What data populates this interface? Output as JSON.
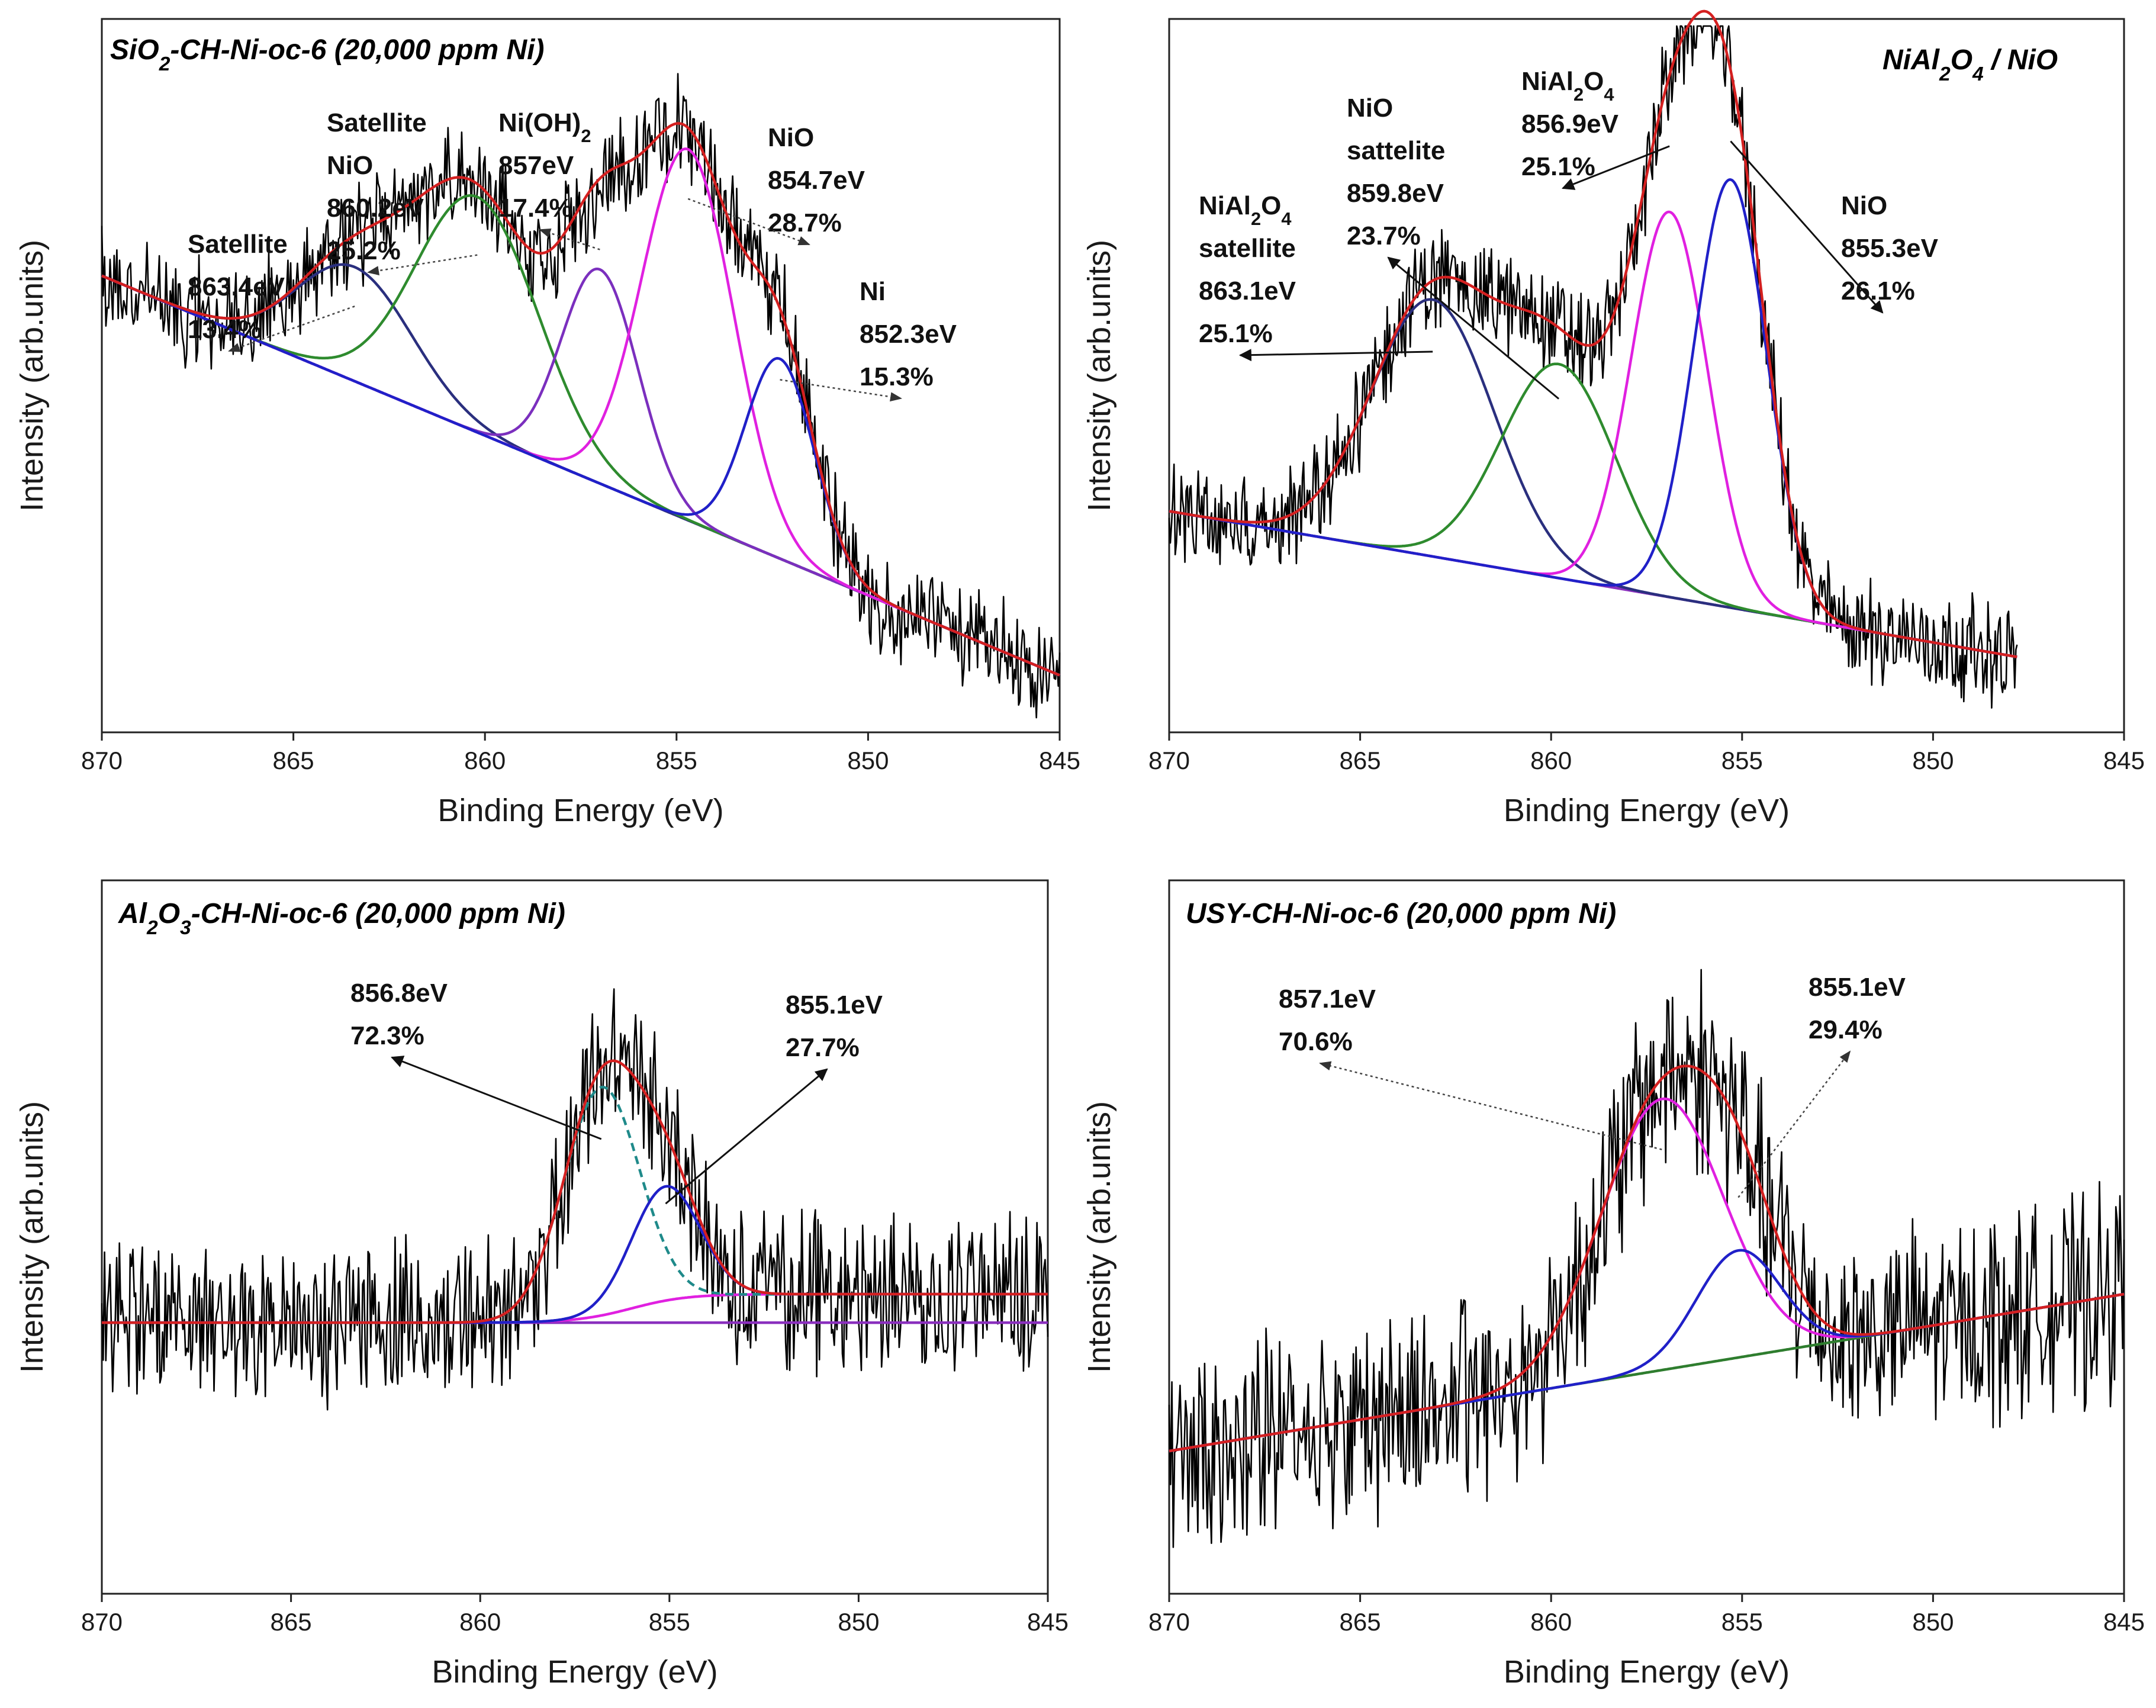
{
  "chart_data": [
    {
      "type": "line",
      "id": "p1",
      "title": "SiO2-CH-Ni-oc-6 (20,000 ppm Ni)",
      "title_parts": [
        [
          "SiO",
          ""
        ],
        [
          "2",
          "sub"
        ],
        [
          "-CH-Ni-oc-6 (20,000 ppm Ni)",
          ""
        ]
      ],
      "xlabel": "Binding Energy (eV)",
      "ylabel": "Intensity (arb.units)",
      "xlim": [
        870,
        845
      ],
      "xticks": [
        870,
        865,
        860,
        855,
        850,
        845
      ],
      "ylim": [
        0,
        100
      ],
      "data_x_range": [
        870,
        845
      ],
      "baseline": [
        64,
        8
      ],
      "envelope_color": "#d42020",
      "noise": {
        "amp": 6,
        "seed": 11
      },
      "peaks": [
        {
          "name": "Satellite",
          "center": 863.4,
          "height": 16,
          "width": 1.5,
          "color": "#2a2f7e",
          "area_pct": 13.4
        },
        {
          "name": "Satellite NiO",
          "center": 860.2,
          "height": 33,
          "width": 1.6,
          "color": "#2e8b2e",
          "area_pct": 25.2
        },
        {
          "name": "Ni(OH)2",
          "center": 857.0,
          "height": 30,
          "width": 1.0,
          "color": "#7b2fbe",
          "area_pct": 17.4
        },
        {
          "name": "NiO",
          "center": 854.7,
          "height": 52,
          "width": 1.2,
          "color": "#e020e0",
          "area_pct": 28.7
        },
        {
          "name": "Ni",
          "center": 852.3,
          "height": 28,
          "width": 0.9,
          "color": "#2020c8",
          "area_pct": 15.3
        }
      ],
      "annotations": [
        {
          "lines": [
            [
              [
                "Satellite",
                ""
              ]
            ],
            [
              [
                "863.4eV",
                ""
              ]
            ],
            [
              [
                "13.4%",
                ""
              ]
            ]
          ],
          "anchor": "left",
          "to_x": 863.4,
          "arrow": "dot"
        },
        {
          "lines": [
            [
              [
                "Satellite",
                ""
              ]
            ],
            [
              [
                "NiO",
                ""
              ]
            ],
            [
              [
                "860.2eV",
                ""
              ]
            ],
            [
              [
                "25.2%",
                ""
              ]
            ]
          ],
          "anchor": "left",
          "to_x": 860.2,
          "arrow": "dot"
        },
        {
          "lines": [
            [
              [
                "Ni(OH)",
                ""
              ],
              [
                "2",
                "sub"
              ]
            ],
            [
              [
                "857eV",
                ""
              ]
            ],
            [
              [
                "17.4%",
                ""
              ]
            ]
          ],
          "anchor": "left",
          "to_x": 857.0,
          "arrow": "dot"
        },
        {
          "lines": [
            [
              [
                "NiO",
                ""
              ]
            ],
            [
              [
                "854.7eV",
                ""
              ]
            ],
            [
              [
                "28.7%",
                ""
              ]
            ]
          ],
          "anchor": "left",
          "to_x": 854.7,
          "arrow": "dot"
        },
        {
          "lines": [
            [
              [
                "Ni",
                ""
              ]
            ],
            [
              [
                "852.3eV",
                ""
              ]
            ],
            [
              [
                "15.3%",
                ""
              ]
            ]
          ],
          "anchor": "left",
          "to_x": 852.3,
          "arrow": "dot"
        }
      ]
    },
    {
      "type": "line",
      "id": "p2",
      "title": "NiAl2O4 / NiO",
      "title_parts": [
        [
          "NiAl",
          ""
        ],
        [
          "2",
          "sub"
        ],
        [
          "O",
          ""
        ],
        [
          "4",
          "sub"
        ],
        [
          " / NiO",
          ""
        ]
      ],
      "xlabel": "Binding Energy (eV)",
      "ylabel": "Intensity (arb.units)",
      "xlim": [
        870,
        845
      ],
      "xticks": [
        870,
        865,
        860,
        855,
        850,
        845
      ],
      "ylim": [
        0,
        100
      ],
      "data_x_range": [
        870,
        847.8
      ],
      "baseline": [
        31,
        8
      ],
      "envelope_color": "#d42020",
      "noise": {
        "amp": 6,
        "seed": 23
      },
      "peaks": [
        {
          "name": "NiAl2O4 satellite",
          "center": 863.1,
          "height": 36,
          "width": 1.6,
          "color": "#2a2f7e",
          "area_pct": 25.1
        },
        {
          "name": "NiO sattelite",
          "center": 859.8,
          "height": 30,
          "width": 1.5,
          "color": "#2e8b2e",
          "area_pct": 23.7
        },
        {
          "name": "NiAl2O4",
          "center": 856.9,
          "height": 54,
          "width": 1.0,
          "color": "#e020e0",
          "area_pct": 25.1
        },
        {
          "name": "NiO",
          "center": 855.3,
          "height": 60,
          "width": 0.95,
          "color": "#2020c8",
          "area_pct": 26.1
        }
      ],
      "annotations": [
        {
          "lines": [
            [
              [
                "NiAl",
                ""
              ],
              [
                "2",
                "sub"
              ],
              [
                "O",
                ""
              ],
              [
                "4",
                "sub"
              ]
            ],
            [
              [
                "satellite",
                ""
              ]
            ],
            [
              [
                "863.1eV",
                ""
              ]
            ],
            [
              [
                "25.1%",
                ""
              ]
            ]
          ],
          "anchor": "left",
          "to_x": 863.1,
          "arrow": "solid"
        },
        {
          "lines": [
            [
              [
                "NiO",
                ""
              ]
            ],
            [
              [
                "sattelite",
                ""
              ]
            ],
            [
              [
                "859.8eV",
                ""
              ]
            ],
            [
              [
                "23.7%",
                ""
              ]
            ]
          ],
          "anchor": "left",
          "to_x": 859.8,
          "arrow": "solid"
        },
        {
          "lines": [
            [
              [
                "NiAl",
                ""
              ],
              [
                "2",
                "sub"
              ],
              [
                "O",
                ""
              ],
              [
                "4",
                "sub"
              ]
            ],
            [
              [
                "856.9eV",
                ""
              ]
            ],
            [
              [
                "25.1%",
                ""
              ]
            ]
          ],
          "anchor": "left",
          "to_x": 856.9,
          "arrow": "solid"
        },
        {
          "lines": [
            [
              [
                "NiO",
                ""
              ]
            ],
            [
              [
                "855.3eV",
                ""
              ]
            ],
            [
              [
                "26.1%",
                ""
              ]
            ]
          ],
          "anchor": "left",
          "to_x": 855.3,
          "arrow": "solid"
        }
      ]
    },
    {
      "type": "line",
      "id": "p3",
      "title": "Al2O3-CH-Ni-oc-6 (20,000 ppm Ni)",
      "title_parts": [
        [
          "Al",
          ""
        ],
        [
          "2",
          "sub"
        ],
        [
          "O",
          ""
        ],
        [
          "3",
          "sub"
        ],
        [
          "-CH-Ni-oc-6 (20,000 ppm Ni)",
          ""
        ]
      ],
      "xlabel": "Binding Energy (eV)",
      "ylabel": "Intensity (arb.units)",
      "xlim": [
        870,
        845
      ],
      "xticks": [
        870,
        865,
        860,
        855,
        850,
        845
      ],
      "ylim": [
        0,
        100
      ],
      "data_x_range": [
        870,
        845
      ],
      "baseline": [
        38,
        38
      ],
      "envelope_color": "#d42020",
      "noise": {
        "amp": 9,
        "seed": 37
      },
      "peaks": [
        {
          "name": "856.8eV",
          "center": 856.8,
          "height": 32,
          "width": 1.0,
          "color": "#1f8a8a",
          "dashed": true,
          "area_pct": 72.3
        },
        {
          "name": "855.1eV",
          "center": 855.1,
          "height": 16,
          "width": 0.9,
          "color": "#2020c8",
          "area_pct": 27.7
        }
      ],
      "background_curve": {
        "color": "#e020e0",
        "low": 38,
        "high": 42,
        "center": 856.0,
        "span": 2.2
      },
      "annotations": [
        {
          "lines": [
            [
              [
                "856.8eV",
                ""
              ]
            ],
            [
              [
                "72.3%",
                ""
              ]
            ]
          ],
          "anchor": "left",
          "to_x": 856.8,
          "arrow": "solid"
        },
        {
          "lines": [
            [
              [
                "855.1eV",
                ""
              ]
            ],
            [
              [
                "27.7%",
                ""
              ]
            ]
          ],
          "anchor": "left",
          "to_x": 855.1,
          "arrow": "solid"
        }
      ]
    },
    {
      "type": "line",
      "id": "p4",
      "title": "USY-CH-Ni-oc-6 (20,000 ppm Ni)",
      "title_parts": [
        [
          "USY-CH-Ni-oc-6 (20,000 ppm Ni)",
          ""
        ]
      ],
      "xlabel": "Binding Energy (eV)",
      "ylabel": "Intensity (arb.units)",
      "xlim": [
        870,
        845
      ],
      "xticks": [
        870,
        865,
        860,
        855,
        850,
        845
      ],
      "ylim": [
        0,
        100
      ],
      "data_x_range": [
        870,
        845
      ],
      "baseline": [
        20,
        42
      ],
      "baseline_color": "#2e7d2e",
      "envelope_color": "#d42020",
      "noise": {
        "amp": 12,
        "seed": 53
      },
      "peaks": [
        {
          "name": "857.1eV",
          "center": 857.1,
          "height": 38,
          "width": 1.6,
          "color": "#e020e0",
          "area_pct": 70.6
        },
        {
          "name": "855.1eV",
          "center": 855.1,
          "height": 15,
          "width": 1.1,
          "color": "#2020c8",
          "area_pct": 29.4
        }
      ],
      "annotations": [
        {
          "lines": [
            [
              [
                "857.1eV",
                ""
              ]
            ],
            [
              [
                "70.6%",
                ""
              ]
            ]
          ],
          "anchor": "left",
          "to_x": 857.1,
          "arrow": "thin"
        },
        {
          "lines": [
            [
              [
                "855.1eV",
                ""
              ]
            ],
            [
              [
                "29.4%",
                ""
              ]
            ]
          ],
          "anchor": "left",
          "to_x": 855.1,
          "arrow": "thin"
        }
      ]
    }
  ]
}
